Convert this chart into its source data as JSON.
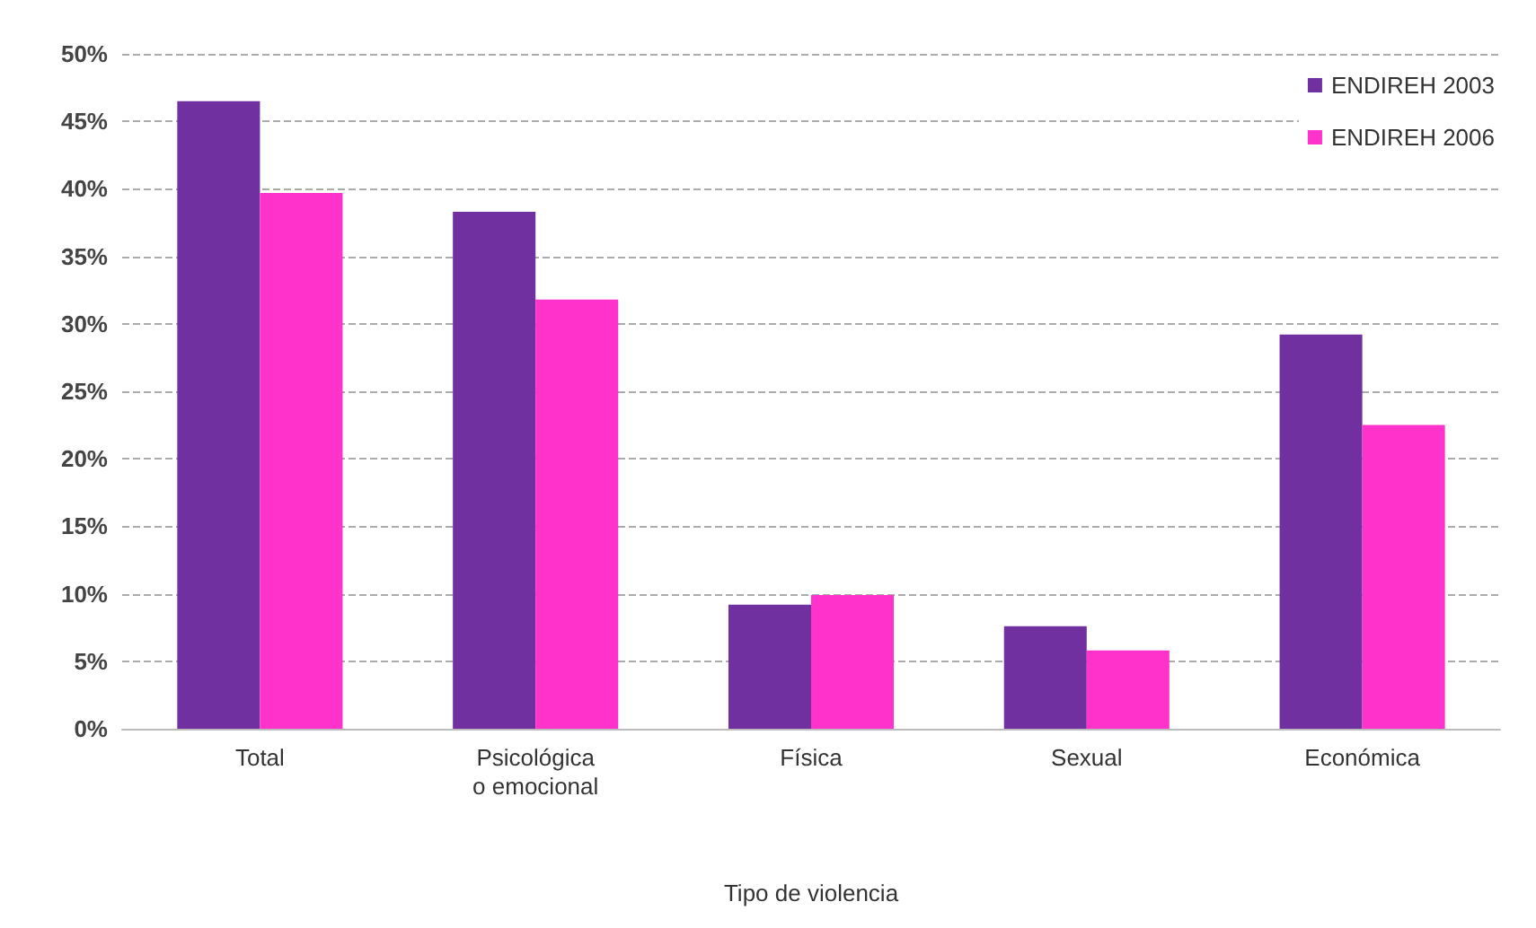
{
  "chart_data": {
    "type": "bar",
    "xlabel": "Tipo de violencia",
    "categories": [
      "Total",
      "Psicológica\no emocional",
      "Física",
      "Sexual",
      "Económica"
    ],
    "series": [
      {
        "name": "ENDIREH 2003",
        "color": "#7030a0",
        "values": [
          46.5,
          38.3,
          9.2,
          7.6,
          29.2
        ]
      },
      {
        "name": "ENDIREH 2006",
        "color": "#ff33cc",
        "values": [
          39.7,
          31.8,
          9.9,
          5.8,
          22.5
        ]
      }
    ],
    "ylim": [
      0,
      50
    ],
    "yticks": [
      {
        "value": 0,
        "label": "0%"
      },
      {
        "value": 5,
        "label": "5%"
      },
      {
        "value": 10,
        "label": "10%"
      },
      {
        "value": 15,
        "label": "15%"
      },
      {
        "value": 20,
        "label": "20%"
      },
      {
        "value": 25,
        "label": "25%"
      },
      {
        "value": 30,
        "label": "30%"
      },
      {
        "value": 35,
        "label": "35%"
      },
      {
        "value": 40,
        "label": "40%"
      },
      {
        "value": 45,
        "label": "45%"
      },
      {
        "value": 50,
        "label": "50%"
      }
    ],
    "grid": "y",
    "legend": "top right"
  }
}
